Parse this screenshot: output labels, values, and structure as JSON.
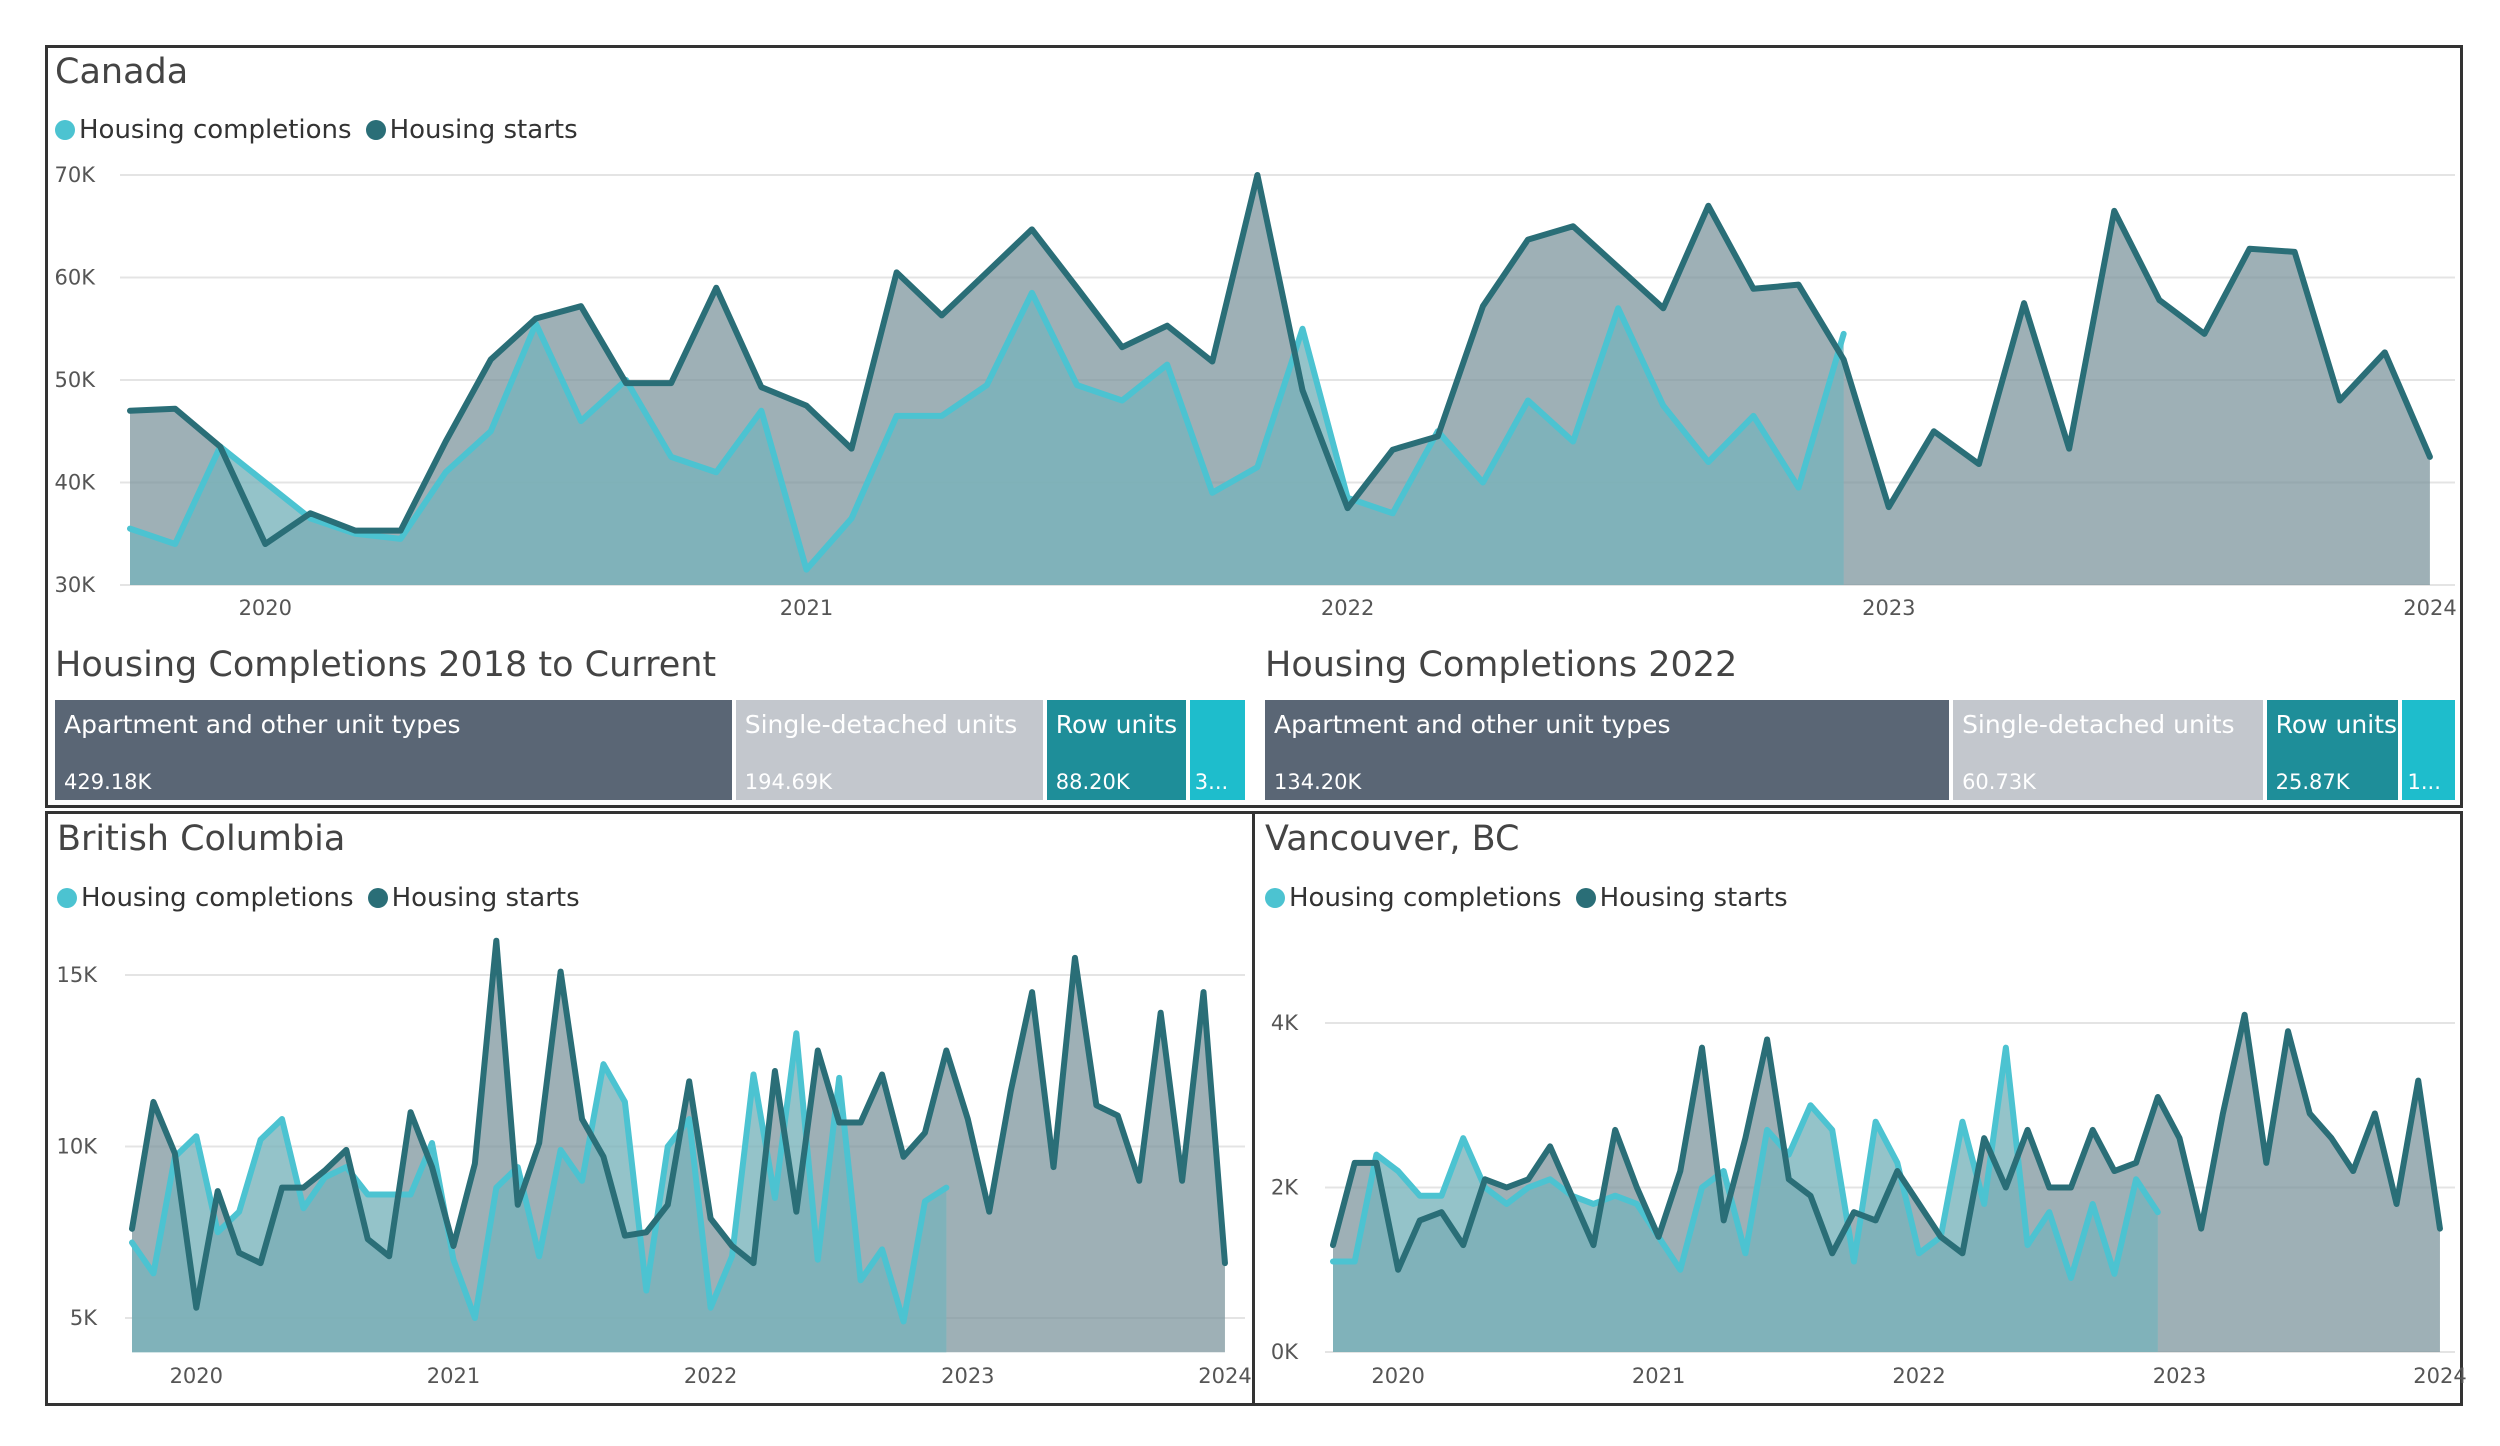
{
  "colors": {
    "completions": "#4cc3d1",
    "starts": "#2a6e77",
    "apartment": "#5a6675",
    "single": "#c3c7cd",
    "row": "#1e8e99",
    "other": "#1ebdcc"
  },
  "canada": {
    "title": "Canada",
    "legend": {
      "completions": "Housing completions",
      "starts": "Housing starts"
    },
    "ytick_labels": [
      "70K",
      "60K",
      "50K",
      "40K",
      "30K"
    ],
    "xtick_labels": [
      "2020",
      "2021",
      "2022",
      "2023",
      "2024"
    ]
  },
  "bc": {
    "title": "British Columbia",
    "legend": {
      "completions": "Housing completions",
      "starts": "Housing starts"
    },
    "ytick_labels": [
      "15K",
      "10K",
      "5K"
    ],
    "xtick_labels": [
      "2020",
      "2021",
      "2022",
      "2023",
      "2024"
    ]
  },
  "van": {
    "title": "Vancouver, BC",
    "legend": {
      "completions": "Housing completions",
      "starts": "Housing starts"
    },
    "ytick_labels": [
      "4K",
      "2K",
      "0K"
    ],
    "xtick_labels": [
      "2020",
      "2021",
      "2022",
      "2023",
      "2024"
    ]
  },
  "treemap_all": {
    "title": "Housing Completions 2018 to Current",
    "cells": [
      {
        "name": "Apartment and other unit types",
        "label": "429.18K",
        "value": 429.18,
        "color_key": "apartment"
      },
      {
        "name": "Single-detached units",
        "label": "194.69K",
        "value": 194.69,
        "color_key": "single"
      },
      {
        "name": "Row units",
        "label": "88.20K",
        "value": 88.2,
        "color_key": "row"
      },
      {
        "name": "",
        "label": "3...",
        "value": 35,
        "color_key": "other"
      }
    ]
  },
  "treemap_2022": {
    "title": "Housing Completions 2022",
    "cells": [
      {
        "name": "Apartment and other unit types",
        "label": "134.20K",
        "value": 134.2,
        "color_key": "apartment"
      },
      {
        "name": "Single-detached units",
        "label": "60.73K",
        "value": 60.73,
        "color_key": "single"
      },
      {
        "name": "Row units",
        "label": "25.87K",
        "value": 25.87,
        "color_key": "row"
      },
      {
        "name": "",
        "label": "1...",
        "value": 10.3,
        "color_key": "other"
      }
    ]
  },
  "chart_data": [
    {
      "id": "canada",
      "type": "area",
      "title": "Canada",
      "x_start": 2019.75,
      "x_step": 0.08333,
      "xlim": [
        2019.75,
        2024.0
      ],
      "ylim": [
        30000,
        70000
      ],
      "yticks": [
        30000,
        40000,
        50000,
        60000,
        70000
      ],
      "xticks": [
        2020,
        2021,
        2022,
        2023,
        2024
      ],
      "series": [
        {
          "name": "Housing completions",
          "values": [
            35500,
            34000,
            43500,
            40000,
            36500,
            35000,
            34500,
            41000,
            45000,
            55500,
            46000,
            50000,
            42500,
            41000,
            47000,
            31500,
            36500,
            46500,
            46500,
            49500,
            58500,
            49500,
            48000,
            51500,
            39000,
            41500,
            55000,
            38500,
            37000,
            45000,
            40000,
            48000,
            44000,
            57000,
            47500,
            42000,
            46500,
            39500,
            54500
          ]
        },
        {
          "name": "Housing starts",
          "values": [
            47000,
            47200,
            43500,
            34000,
            37000,
            35300,
            35300,
            44000,
            52000,
            56000,
            57200,
            49700,
            49700,
            59000,
            49300,
            47500,
            43300,
            60500,
            56300,
            60500,
            64700,
            59000,
            53200,
            55300,
            51800,
            70000,
            49000,
            37500,
            43200,
            44500,
            57200,
            63700,
            65000,
            61000,
            57000,
            67000,
            58900,
            59300,
            52000,
            37600,
            45000,
            41800,
            57500,
            43300,
            66500,
            57800,
            54500,
            62800,
            62500,
            48000,
            52700,
            42500
          ]
        }
      ]
    },
    {
      "id": "bc",
      "type": "area",
      "title": "British Columbia",
      "x_start": 2019.75,
      "x_step": 0.08333,
      "xlim": [
        2019.75,
        2024.0
      ],
      "ylim": [
        4000,
        17000
      ],
      "yticks": [
        5000,
        10000,
        15000
      ],
      "xticks": [
        2020,
        2021,
        2022,
        2023,
        2024
      ],
      "series": [
        {
          "name": "Housing completions",
          "values": [
            7200,
            6300,
            9700,
            10300,
            7500,
            8100,
            10200,
            10800,
            8200,
            9100,
            9400,
            8600,
            8600,
            8600,
            10100,
            6700,
            5000,
            8800,
            9400,
            6800,
            9900,
            9000,
            12400,
            11300,
            5800,
            10000,
            10800,
            5300,
            6800,
            12100,
            8500,
            13300,
            6700,
            12000,
            6100,
            7000,
            4900,
            8400,
            8800
          ]
        },
        {
          "name": "Housing starts",
          "values": [
            7600,
            11300,
            9800,
            5300,
            8700,
            6900,
            6600,
            8800,
            8800,
            9300,
            9900,
            7300,
            6800,
            11000,
            9400,
            7100,
            9500,
            16000,
            8300,
            10100,
            15100,
            10800,
            9700,
            7400,
            7500,
            8300,
            11900,
            7900,
            7100,
            6600,
            12200,
            8100,
            12800,
            10700,
            10700,
            12100,
            9700,
            10400,
            12800,
            10800,
            8100,
            11600,
            14500,
            9400,
            15500,
            11200,
            10900,
            9000,
            13900,
            9000,
            14500,
            6600
          ]
        }
      ]
    },
    {
      "id": "van",
      "type": "area",
      "title": "Vancouver, BC",
      "x_start": 2019.75,
      "x_step": 0.08333,
      "xlim": [
        2019.75,
        2024.0
      ],
      "ylim": [
        0,
        4800
      ],
      "yticks": [
        0,
        2000,
        4000
      ],
      "xticks": [
        2020,
        2021,
        2022,
        2023,
        2024
      ],
      "series": [
        {
          "name": "Housing completions",
          "values": [
            1100,
            1100,
            2400,
            2200,
            1900,
            1900,
            2600,
            2000,
            1800,
            2000,
            2100,
            1900,
            1800,
            1900,
            1800,
            1400,
            1000,
            2000,
            2200,
            1200,
            2700,
            2400,
            3000,
            2700,
            1100,
            2800,
            2300,
            1200,
            1400,
            2800,
            1800,
            3700,
            1300,
            1700,
            900,
            1800,
            950,
            2100,
            1700
          ]
        },
        {
          "name": "Housing starts",
          "values": [
            1300,
            2300,
            2300,
            1000,
            1600,
            1700,
            1300,
            2100,
            2000,
            2100,
            2500,
            1900,
            1300,
            2700,
            2000,
            1400,
            2200,
            3700,
            1600,
            2600,
            3800,
            2100,
            1900,
            1200,
            1700,
            1600,
            2200,
            1800,
            1400,
            1200,
            2600,
            2000,
            2700,
            2000,
            2000,
            2700,
            2200,
            2300,
            3100,
            2600,
            1500,
            2900,
            4100,
            2300,
            3900,
            2900,
            2600,
            2200,
            2900,
            1800,
            3300,
            1500
          ]
        }
      ]
    }
  ]
}
